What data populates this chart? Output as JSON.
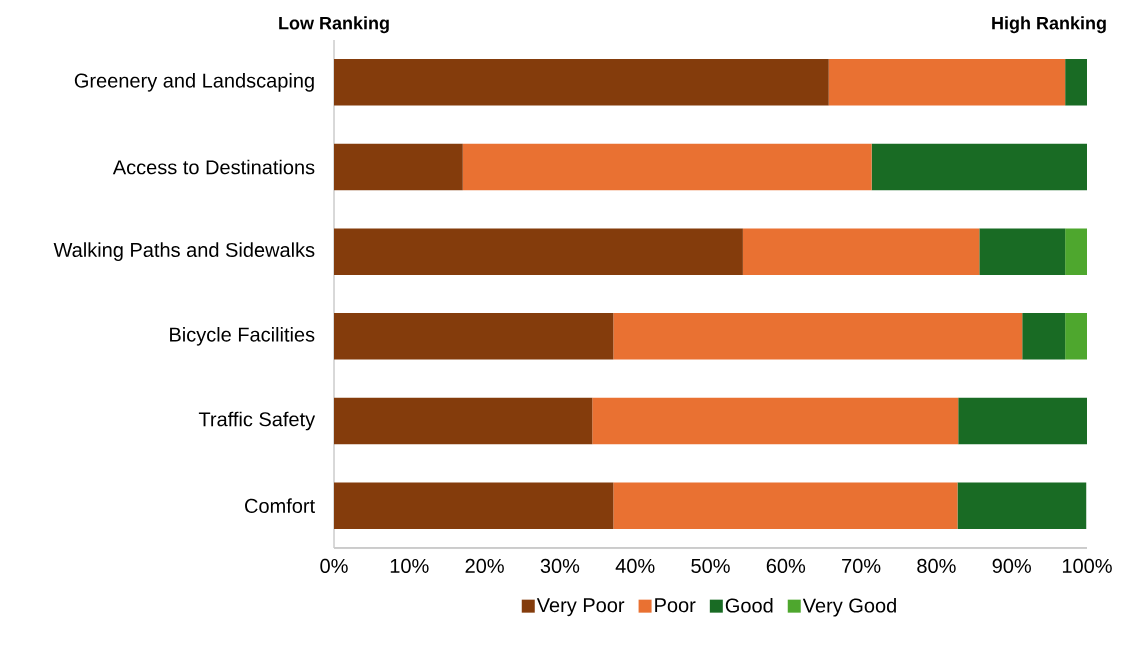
{
  "chart_data": {
    "type": "bar",
    "orientation": "horizontal",
    "stacked": true,
    "categories": [
      "Greenery and Landscaping",
      "Access to Destinations",
      "Walking Paths and Sidewalks",
      "Bicycle Facilities",
      "Traffic Safety",
      "Comfort"
    ],
    "series": [
      {
        "name": "Very Poor",
        "color": "#843c0c",
        "values": [
          65.7,
          17.1,
          54.3,
          37.1,
          34.3,
          37.1
        ]
      },
      {
        "name": "Poor",
        "color": "#e97132",
        "values": [
          31.4,
          54.3,
          31.4,
          54.3,
          48.6,
          45.7
        ]
      },
      {
        "name": "Good",
        "color": "#196b24",
        "values": [
          2.9,
          28.6,
          11.4,
          5.7,
          17.1,
          17.1
        ]
      },
      {
        "name": "Very Good",
        "color": "#4ea72e",
        "values": [
          0,
          0,
          2.9,
          2.9,
          0,
          0
        ]
      }
    ],
    "xlim": [
      0,
      100
    ],
    "xticks": [
      {
        "value": 0,
        "label": "0%"
      },
      {
        "value": 10,
        "label": "10%"
      },
      {
        "value": 20,
        "label": "20%"
      },
      {
        "value": 30,
        "label": "30%"
      },
      {
        "value": 40,
        "label": "40%"
      },
      {
        "value": 50,
        "label": "50%"
      },
      {
        "value": 60,
        "label": "60%"
      },
      {
        "value": 70,
        "label": "70%"
      },
      {
        "value": 80,
        "label": "80%"
      },
      {
        "value": 90,
        "label": "90%"
      },
      {
        "value": 100,
        "label": "100%"
      }
    ],
    "legend": "bottom",
    "annotations": [
      "Low Ranking",
      "High Ranking"
    ]
  }
}
